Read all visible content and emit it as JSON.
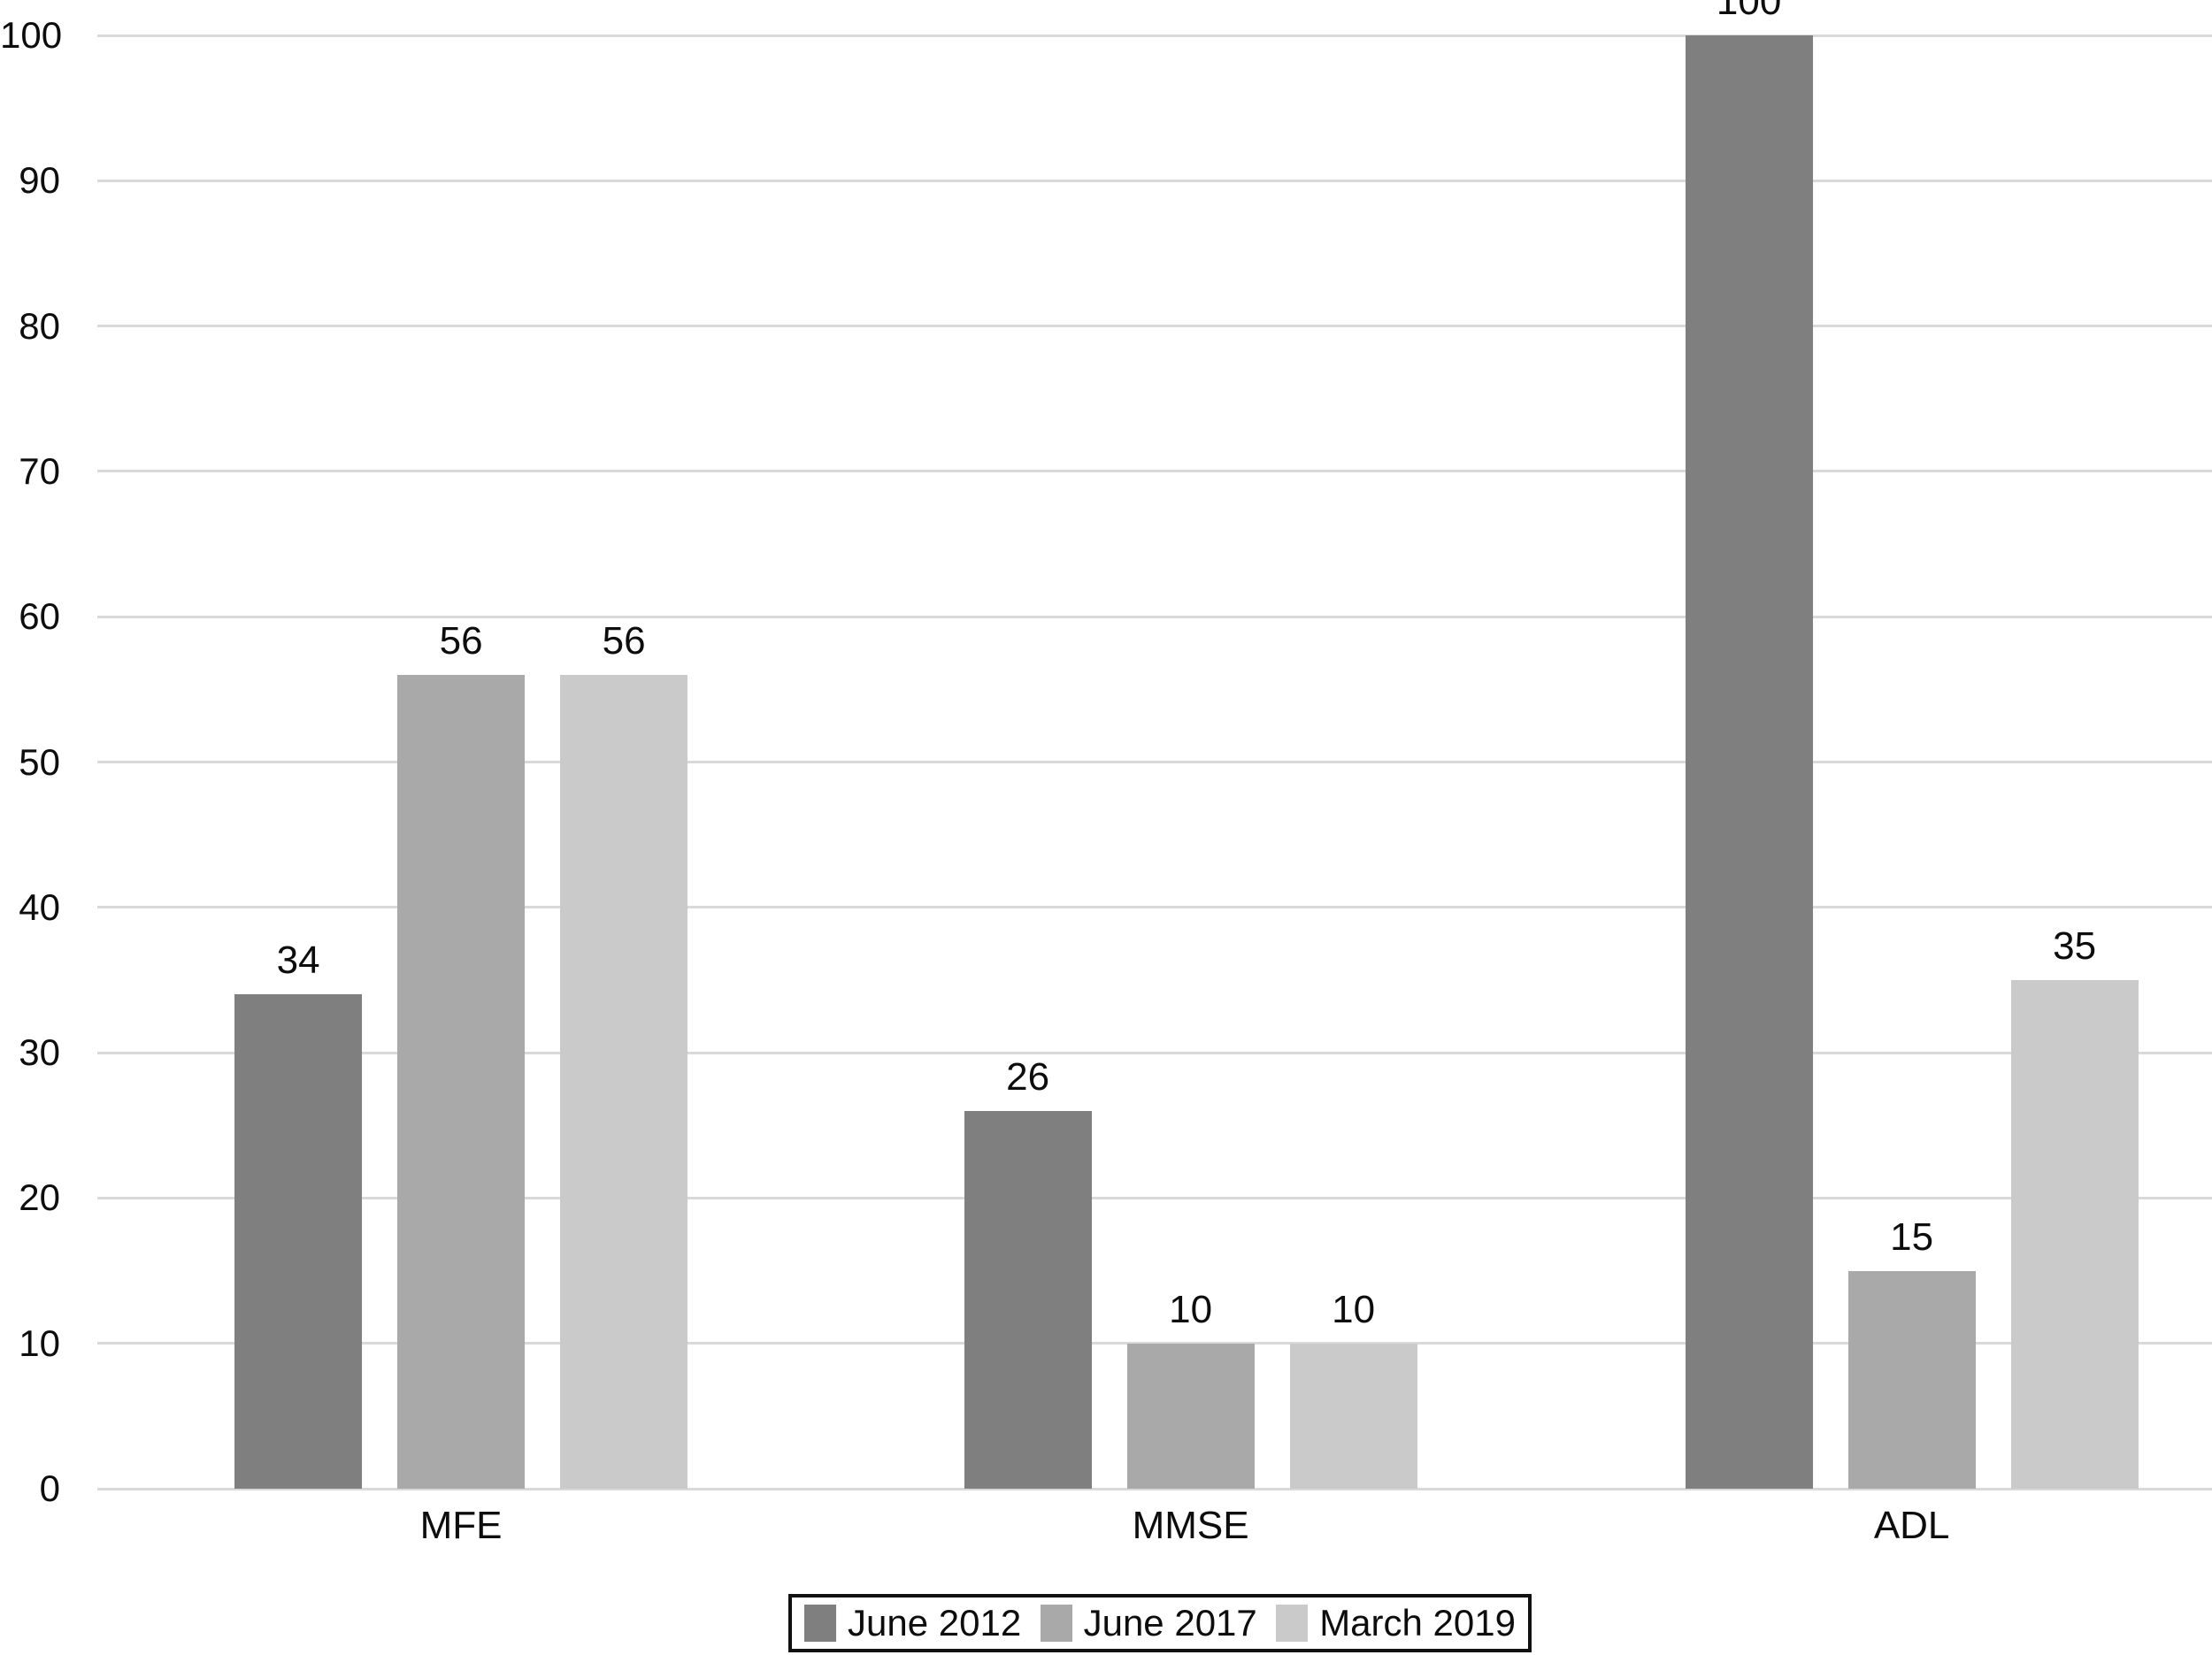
{
  "chart_data": {
    "type": "bar",
    "title": "",
    "xlabel": "",
    "ylabel": "",
    "categories": [
      "MFE",
      "MMSE",
      "ADL"
    ],
    "series": [
      {
        "name": "June 2012",
        "color": "#7f7f7f",
        "values": [
          34,
          26,
          100
        ]
      },
      {
        "name": "June 2017",
        "color": "#a9a9a9",
        "values": [
          56,
          10,
          15
        ]
      },
      {
        "name": "March 2019",
        "color": "#cacaca",
        "values": [
          56,
          10,
          35
        ]
      }
    ],
    "ylim": [
      0,
      100
    ],
    "yticks": [
      0,
      10,
      20,
      30,
      40,
      50,
      60,
      70,
      80,
      90,
      100
    ],
    "grid": true,
    "value_labels": true,
    "legend_position": "bottom"
  },
  "colors": {
    "background": "#ffffff",
    "gridline": "#d9d9d9",
    "text": "#0d0d0d",
    "legend_border": "#111111"
  }
}
